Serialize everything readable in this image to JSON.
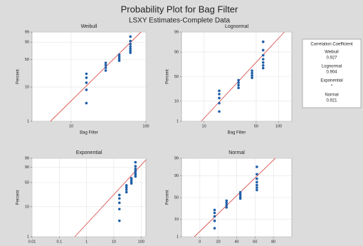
{
  "header": {
    "title": "Probability Plot for Bag Filter",
    "subtitle": "LSXY Estimates-Complete Data"
  },
  "correlation_table": {
    "title": "Correlation Coefficient",
    "entries": [
      {
        "name": "Weibull",
        "value": "0.927"
      },
      {
        "name": "Lognormal",
        "value": "0.904"
      },
      {
        "name": "Exponential",
        "value": "*"
      },
      {
        "name": "Normal",
        "value": "0.921"
      }
    ]
  },
  "chart_data": [
    {
      "type": "scatter",
      "title": "Weibull",
      "xlabel": "Bag Filter",
      "ylabel": "Percent",
      "xscale": "log",
      "yscale": "weibull",
      "xlim": [
        3,
        100
      ],
      "xticks": [
        10,
        100
      ],
      "ylim": [
        1,
        99
      ],
      "yticks": [
        1,
        10,
        50,
        90,
        99
      ],
      "grid": true,
      "color": "#1f5fa8",
      "x": [
        16,
        16,
        16,
        16,
        16,
        29,
        29,
        29,
        29,
        44,
        44,
        44,
        44,
        62,
        62,
        62,
        62,
        62,
        62,
        62
      ],
      "values": [
        3.43,
        8.33,
        13.24,
        18.14,
        23.04,
        27.94,
        32.84,
        37.75,
        42.65,
        47.55,
        52.45,
        57.35,
        62.25,
        67.16,
        72.06,
        76.96,
        81.86,
        86.76,
        91.67,
        96.57
      ],
      "fit_line": {
        "color": "#d9534f",
        "x": [
          5.3,
          86
        ],
        "values": [
          1,
          99
        ]
      }
    },
    {
      "type": "scatter",
      "title": "Lognormal",
      "xlabel": "Bag Filter",
      "ylabel": "Percent",
      "xscale": "log",
      "yscale": "normal",
      "xlim": [
        5,
        150
      ],
      "xticks": [
        10,
        50,
        100
      ],
      "ylim": [
        1,
        99
      ],
      "yticks": [
        1,
        10,
        50,
        90,
        99
      ],
      "grid": true,
      "color": "#1f5fa8",
      "x": [
        16,
        16,
        16,
        16,
        16,
        29,
        29,
        29,
        29,
        44,
        44,
        44,
        44,
        62,
        62,
        62,
        62,
        62,
        62,
        62
      ],
      "values": [
        3.43,
        8.33,
        13.24,
        18.14,
        23.04,
        27.94,
        32.84,
        37.75,
        42.65,
        47.55,
        52.45,
        57.35,
        62.25,
        67.16,
        72.06,
        76.96,
        81.86,
        86.76,
        91.67,
        96.57
      ],
      "fit_line": {
        "color": "#d9534f",
        "x": [
          9.2,
          119
        ],
        "values": [
          1,
          99
        ]
      }
    },
    {
      "type": "scatter",
      "title": "Exponential",
      "xlabel": "Bag Filter",
      "ylabel": "Percent",
      "xscale": "log",
      "yscale": "weibull",
      "xlim": [
        0.01,
        150
      ],
      "xticks": [
        0.01,
        0.1,
        1,
        10,
        100
      ],
      "ylim": [
        1,
        99
      ],
      "yticks": [
        1,
        10,
        50,
        90,
        99
      ],
      "grid": true,
      "color": "#1f5fa8",
      "x": [
        16,
        16,
        16,
        16,
        16,
        29,
        29,
        29,
        29,
        44,
        44,
        44,
        44,
        62,
        62,
        62,
        62,
        62,
        62,
        62
      ],
      "values": [
        3.43,
        8.33,
        13.24,
        18.14,
        23.04,
        27.94,
        32.84,
        37.75,
        42.65,
        47.55,
        52.45,
        57.35,
        62.25,
        67.16,
        72.06,
        76.96,
        81.86,
        86.76,
        91.67,
        96.57
      ],
      "fit_line": {
        "color": "#d9534f",
        "x": [
          0.37,
          150
        ],
        "values": [
          1,
          98.3
        ]
      }
    },
    {
      "type": "scatter",
      "title": "Normal",
      "xlabel": "Bag Filter",
      "ylabel": "Percent",
      "xscale": "linear",
      "yscale": "normal",
      "xlim": [
        -20,
        100
      ],
      "xticks": [
        0,
        20,
        40,
        60,
        80
      ],
      "ylim": [
        1,
        99
      ],
      "yticks": [
        1,
        10,
        50,
        90,
        99
      ],
      "grid": true,
      "color": "#1f5fa8",
      "x": [
        16,
        16,
        16,
        16,
        16,
        29,
        29,
        29,
        29,
        44,
        44,
        44,
        44,
        62,
        62,
        62,
        62,
        62,
        62,
        62
      ],
      "values": [
        3.43,
        8.33,
        13.24,
        18.14,
        23.04,
        27.94,
        32.84,
        37.75,
        42.65,
        47.55,
        52.45,
        57.35,
        62.25,
        67.16,
        72.06,
        76.96,
        81.86,
        86.76,
        91.67,
        96.57
      ],
      "fit_line": {
        "color": "#d9534f",
        "x": [
          -6,
          82
        ],
        "values": [
          1,
          99
        ]
      }
    }
  ]
}
